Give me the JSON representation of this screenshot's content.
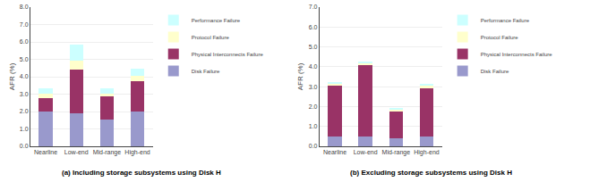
{
  "chart_data": [
    {
      "type": "bar",
      "stacked": true,
      "title": "(a) Including storage subsystems using Disk H",
      "categories": [
        "Nearline",
        "Low-end",
        "Mid-range",
        "High-end"
      ],
      "ylabel": "AFR (%)",
      "series": [
        {
          "name": "Disk Failure",
          "color": "#9999cc",
          "values": [
            2.0,
            1.9,
            1.55,
            2.0
          ]
        },
        {
          "name": "Physical Interconnects Failure",
          "color": "#993366",
          "values": [
            0.75,
            2.5,
            1.3,
            1.75
          ]
        },
        {
          "name": "Protocol Failure",
          "color": "#ffffcc",
          "values": [
            0.28,
            0.5,
            0.18,
            0.28
          ]
        },
        {
          "name": "Performance Failure",
          "color": "#ccffff",
          "values": [
            0.28,
            0.95,
            0.28,
            0.42
          ]
        }
      ],
      "ylim": [
        0.0,
        8.0
      ],
      "yticks": [
        {
          "value": 0.0,
          "label": "0.0"
        },
        {
          "value": 1.0,
          "label": "1.0"
        },
        {
          "value": 2.0,
          "label": "2.0"
        },
        {
          "value": 3.0,
          "label": "3.0"
        },
        {
          "value": 4.0,
          "label": "4.0"
        },
        {
          "value": 5.0,
          "label": "5.0"
        },
        {
          "value": 6.0,
          "label": "6.0"
        },
        {
          "value": 7.0,
          "label": "7.0"
        },
        {
          "value": 8.0,
          "label": "8.0"
        }
      ],
      "grid": true,
      "legend": "upper right"
    },
    {
      "type": "bar",
      "stacked": true,
      "title": "(b) Excluding storage subsystems using Disk H",
      "categories": [
        "Nearline",
        "Low-end",
        "Mid-range",
        "High-end"
      ],
      "ylabel": "AFR (%)",
      "series": [
        {
          "name": "Disk Failure",
          "color": "#9999cc",
          "values": [
            0.5,
            0.5,
            0.42,
            0.5
          ]
        },
        {
          "name": "Physical Interconnects Failure",
          "color": "#993366",
          "values": [
            2.55,
            3.6,
            1.35,
            2.45
          ]
        },
        {
          "name": "Protocol Failure",
          "color": "#ffffcc",
          "values": [
            0.1,
            0.08,
            0.07,
            0.08
          ]
        },
        {
          "name": "Performance Failure",
          "color": "#ccffff",
          "values": [
            0.1,
            0.07,
            0.07,
            0.1
          ]
        }
      ],
      "ylim": [
        0.0,
        7.0
      ],
      "yticks": [
        {
          "value": 0.0,
          "label": "0.0"
        },
        {
          "value": 1.0,
          "label": "1.0"
        },
        {
          "value": 2.0,
          "label": "2.0"
        },
        {
          "value": 3.0,
          "label": "3.0"
        },
        {
          "value": 4.0,
          "label": "4.0"
        },
        {
          "value": 5.0,
          "label": "5.0"
        },
        {
          "value": 6.0,
          "label": "6.0"
        },
        {
          "value": 7.0,
          "label": "7.0"
        }
      ],
      "grid": true,
      "legend": "upper right"
    }
  ]
}
